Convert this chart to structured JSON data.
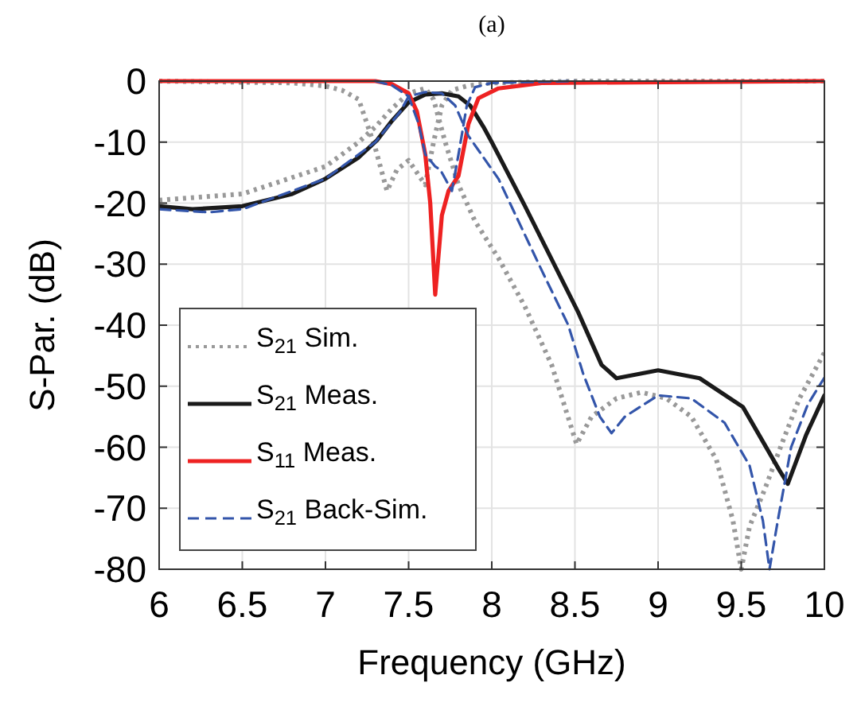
{
  "chart_data": {
    "type": "line",
    "title": "(a)",
    "xlabel": "Frequency (GHz)",
    "ylabel": "S-Par. (dB)",
    "xlim": [
      6,
      10
    ],
    "ylim": [
      -80,
      0
    ],
    "xticks": [
      6,
      6.5,
      7,
      7.5,
      8,
      8.5,
      9,
      9.5,
      10
    ],
    "yticks": [
      -80,
      -70,
      -60,
      -50,
      -40,
      -30,
      -20,
      -10,
      0
    ],
    "grid": true,
    "legend": "bottom left",
    "series": [
      {
        "name": "S$_{21}$ Sim.",
        "color": "#999999",
        "line_style": "dotted",
        "x": [
          6,
          6.5,
          7,
          7.2,
          7.3,
          7.4,
          7.5,
          7.6,
          7.65,
          7.72,
          7.8,
          7.9,
          8.04,
          8.2,
          8.36,
          8.51,
          8.6,
          8.75,
          8.9,
          9.05,
          9.2,
          9.35,
          9.45,
          9.5,
          9.55,
          9.64,
          9.75,
          9.85,
          10
        ],
        "values": [
          -19.5,
          -18.5,
          -14,
          -10,
          -7.5,
          -4.5,
          -2,
          -1.2,
          -3,
          -10,
          -17,
          -23,
          -29,
          -37,
          -46.5,
          -59.5,
          -55,
          -52,
          -51,
          -52,
          -55,
          -62,
          -72,
          -80,
          -73,
          -67,
          -59,
          -52,
          -44.5
        ]
      },
      {
        "color": "#999999",
        "line_style": "dotted",
        "x": [
          6,
          6.8,
          7,
          7.1,
          7.2,
          7.3,
          7.37,
          7.43,
          7.5,
          7.55,
          7.6,
          7.65,
          7.7,
          7.76,
          7.85,
          8,
          8.5,
          10
        ],
        "values": [
          0,
          -0.3,
          -0.8,
          -1.5,
          -3,
          -11,
          -18,
          -14.5,
          -13,
          -15,
          -17,
          -10,
          -4,
          -1.5,
          -0.8,
          -0.3,
          0,
          0
        ]
      },
      {
        "name": "S$_{21}$ Meas.",
        "color": "#1a1a1a",
        "line_style": "solid",
        "x": [
          6,
          6.2,
          6.5,
          6.8,
          7,
          7.2,
          7.31,
          7.4,
          7.5,
          7.6,
          7.7,
          7.8,
          7.87,
          7.95,
          8,
          8.2,
          8.52,
          8.66,
          8.75,
          9,
          9.25,
          9.51,
          9.73,
          9.78,
          9.89,
          10
        ],
        "values": [
          -20.5,
          -21,
          -20.5,
          -18.5,
          -16,
          -12.5,
          -9.7,
          -6.5,
          -3.5,
          -2.2,
          -2,
          -2.5,
          -4,
          -7.5,
          -10,
          -20.5,
          -37.9,
          -46.5,
          -48.7,
          -47.4,
          -48.7,
          -53.4,
          -63.8,
          -66,
          -58,
          -51.5
        ]
      },
      {
        "name": "S$_{11}$ Meas.",
        "color": "#ee2222",
        "line_style": "solid",
        "x": [
          6,
          7.3,
          7.4,
          7.5,
          7.55,
          7.6,
          7.63,
          7.66,
          7.7,
          7.74,
          7.8,
          7.86,
          7.92,
          8.04,
          8.3,
          10
        ],
        "values": [
          0,
          0,
          -0.5,
          -2,
          -5,
          -12,
          -20,
          -35,
          -22,
          -18,
          -15.5,
          -7,
          -2.8,
          -1.2,
          -0.3,
          0
        ]
      },
      {
        "name": "S$_{21}$ Back-Sim.",
        "color": "#3355aa",
        "line_style": "dashed",
        "x": [
          6,
          6.3,
          6.5,
          7,
          7.3,
          7.45,
          7.5,
          7.6,
          7.7,
          7.78,
          7.86,
          8.04,
          8.3,
          8.46,
          8.55,
          8.65,
          8.72,
          8.8,
          9,
          9.2,
          9.4,
          9.55,
          9.63,
          9.67,
          9.72,
          9.8,
          9.9,
          10
        ],
        "values": [
          -21,
          -21.5,
          -21,
          -16,
          -10,
          -5,
          -2.5,
          -1.8,
          -2,
          -4,
          -9,
          -16,
          -31,
          -40,
          -48,
          -55,
          -57.7,
          -55,
          -51.5,
          -52,
          -56,
          -63,
          -72,
          -80,
          -72,
          -60,
          -53,
          -48.6
        ]
      },
      {
        "color": "#3355aa",
        "line_style": "dashed",
        "x": [
          7.3,
          7.4,
          7.5,
          7.56,
          7.6,
          7.66,
          7.69,
          7.72,
          7.76,
          7.8,
          7.85,
          7.9,
          8,
          8.5
        ],
        "values": [
          0,
          -0.7,
          -2.5,
          -7,
          -12,
          -14,
          -14.5,
          -16,
          -18,
          -12,
          -4,
          -1,
          -0.3,
          0
        ]
      }
    ]
  }
}
